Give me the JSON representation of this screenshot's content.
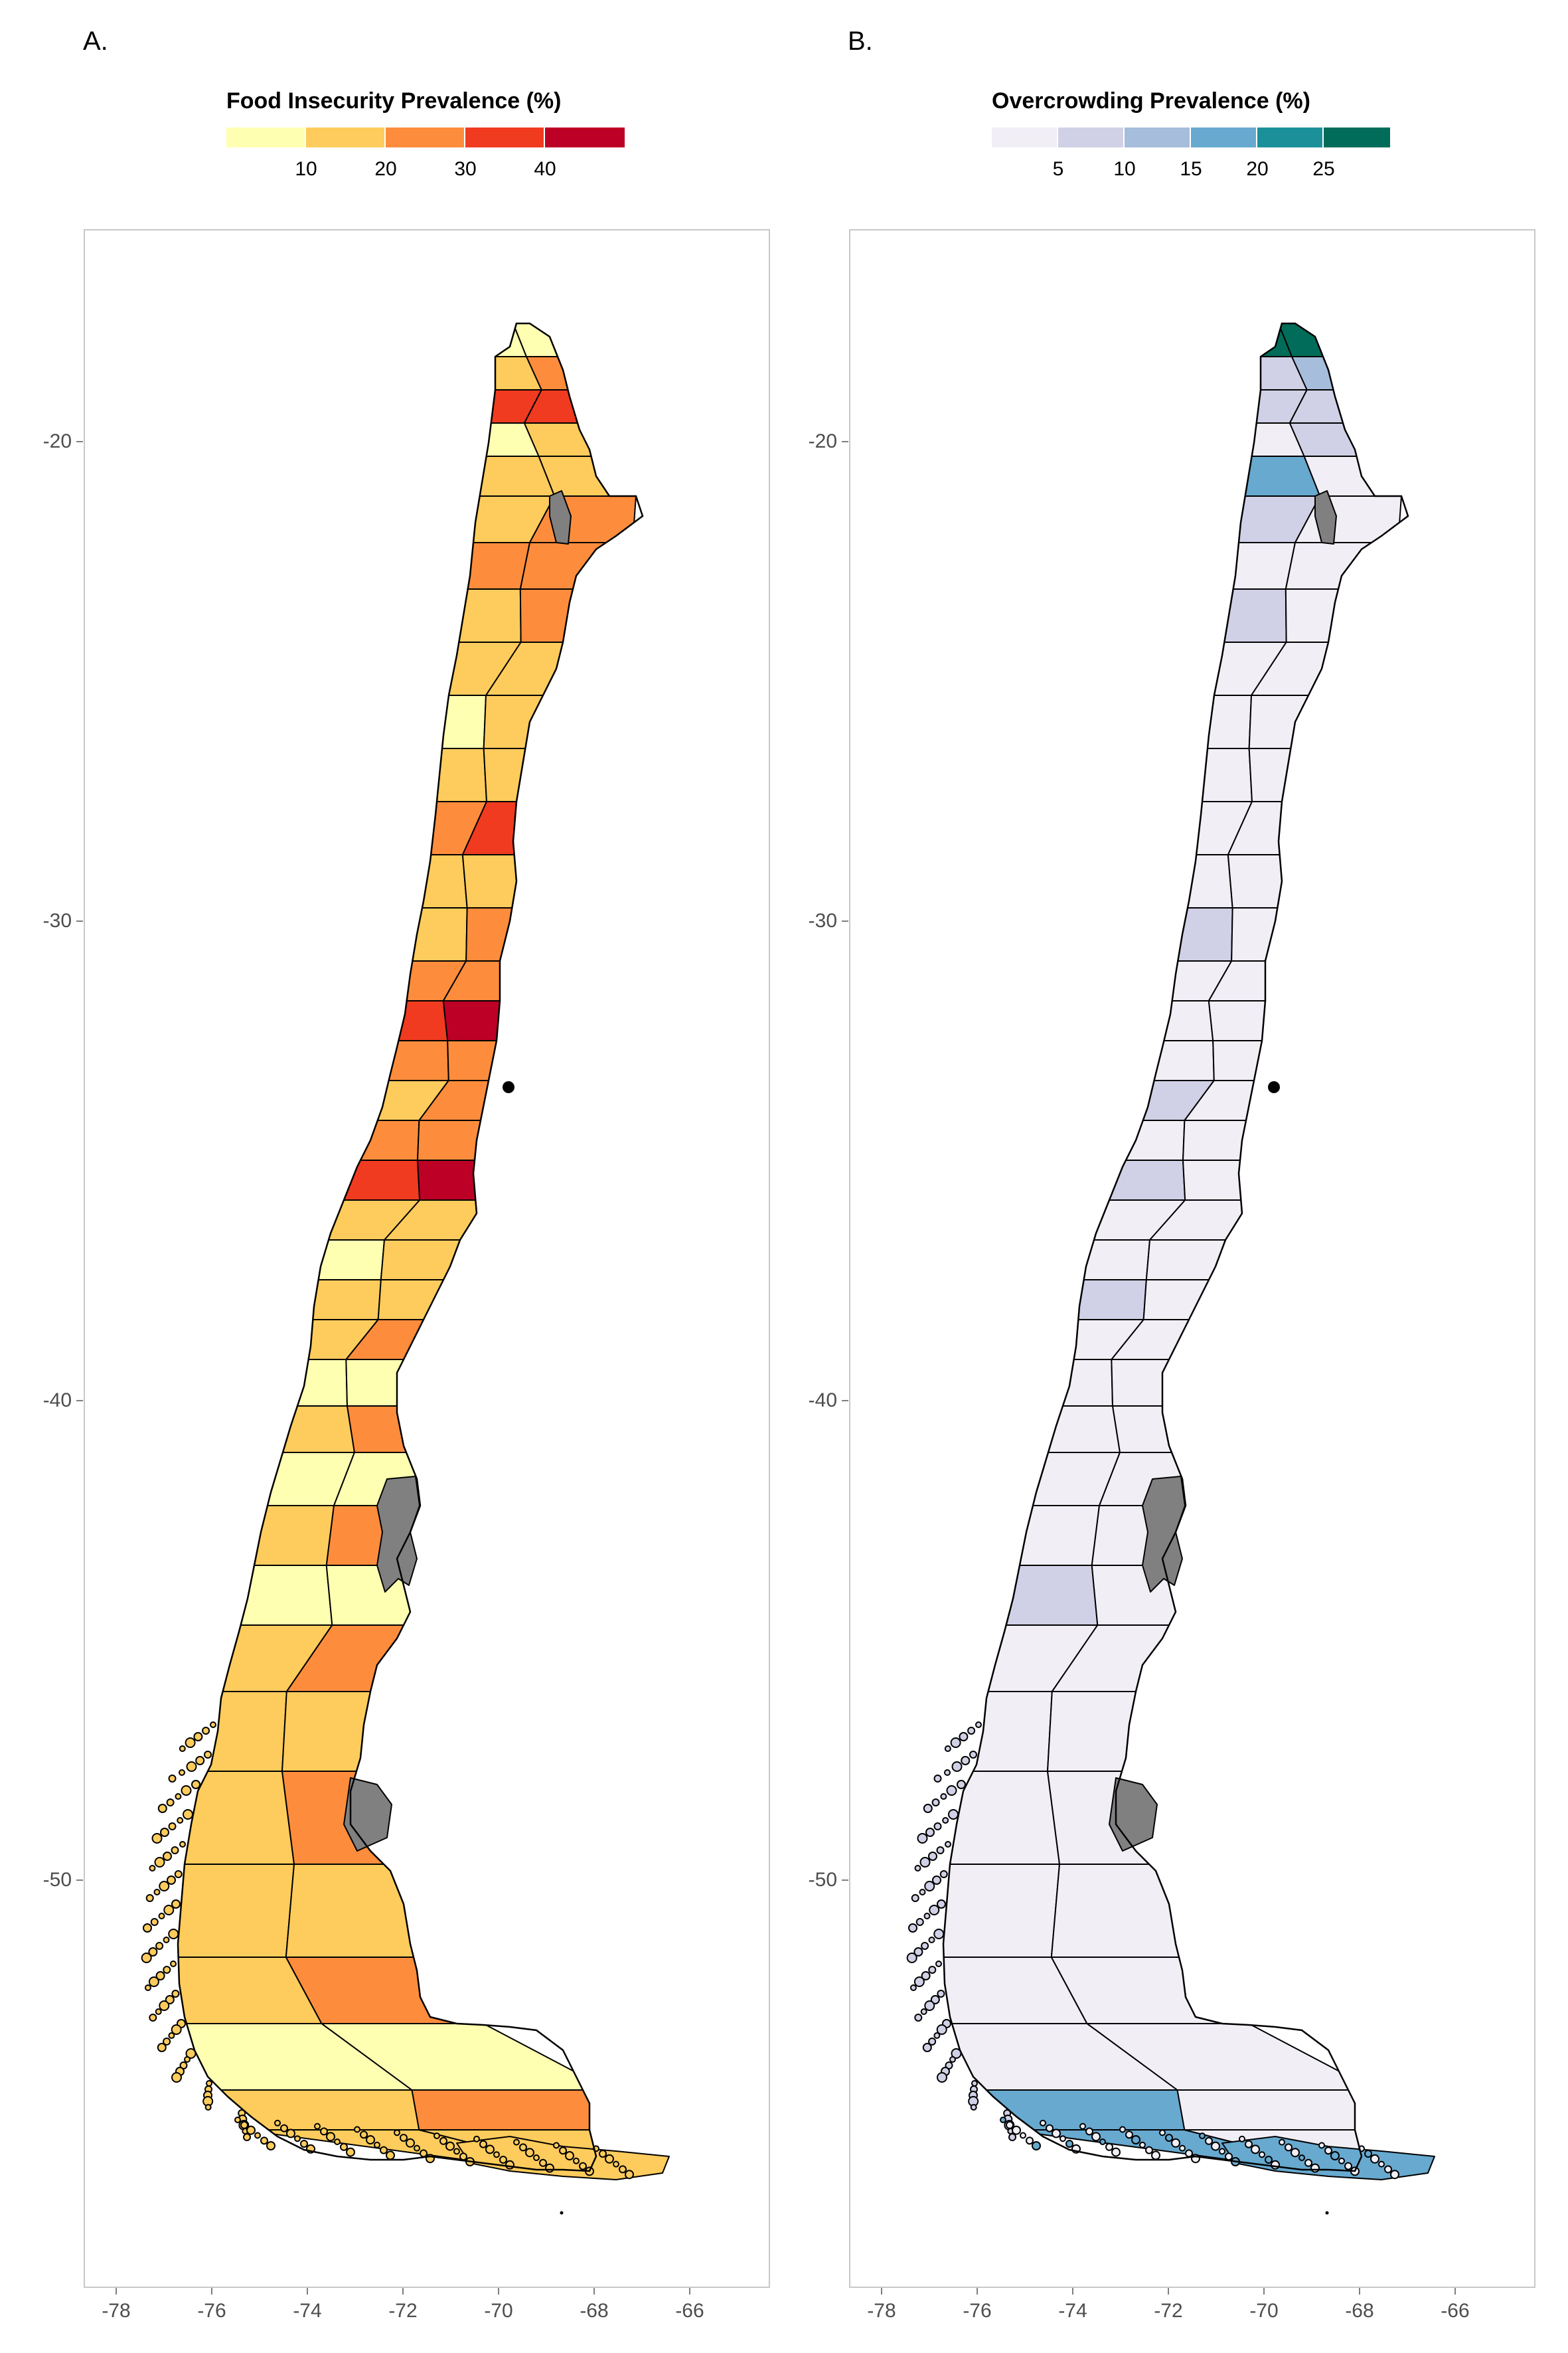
{
  "panels": [
    {
      "tag": "A.",
      "legend": {
        "title": "Food Insecurity Prevalence (%)",
        "colors": [
          "#ffffb2",
          "#fecc5c",
          "#fd8d3c",
          "#f03b20",
          "#bd0026"
        ],
        "ticks": [
          "10",
          "20",
          "30",
          "40"
        ]
      },
      "land_color": "#fecc5c",
      "region_colors": [
        "#ffffb2",
        "#fecc5c",
        "#fd8d3c",
        "#f03b20",
        "#bd0026",
        "#808080"
      ]
    },
    {
      "tag": "B.",
      "legend": {
        "title": "Overcrowding Prevalence (%)",
        "colors": [
          "#f1eef6",
          "#d0d1e6",
          "#a6bddb",
          "#67a9cf",
          "#1c9099",
          "#016c59"
        ],
        "ticks": [
          "5",
          "10",
          "15",
          "20",
          "25"
        ]
      },
      "land_color": "#f1eef6",
      "region_colors": [
        "#f1eef6",
        "#d0d1e6",
        "#a6bddb",
        "#67a9cf",
        "#1c9099",
        "#016c59",
        "#808080"
      ]
    }
  ],
  "axes": {
    "y_ticks": [
      "-20",
      "-30",
      "-40",
      "-50"
    ],
    "x_ticks": [
      "-78",
      "-76",
      "-74",
      "-72",
      "-70",
      "-68",
      "-66"
    ]
  }
}
